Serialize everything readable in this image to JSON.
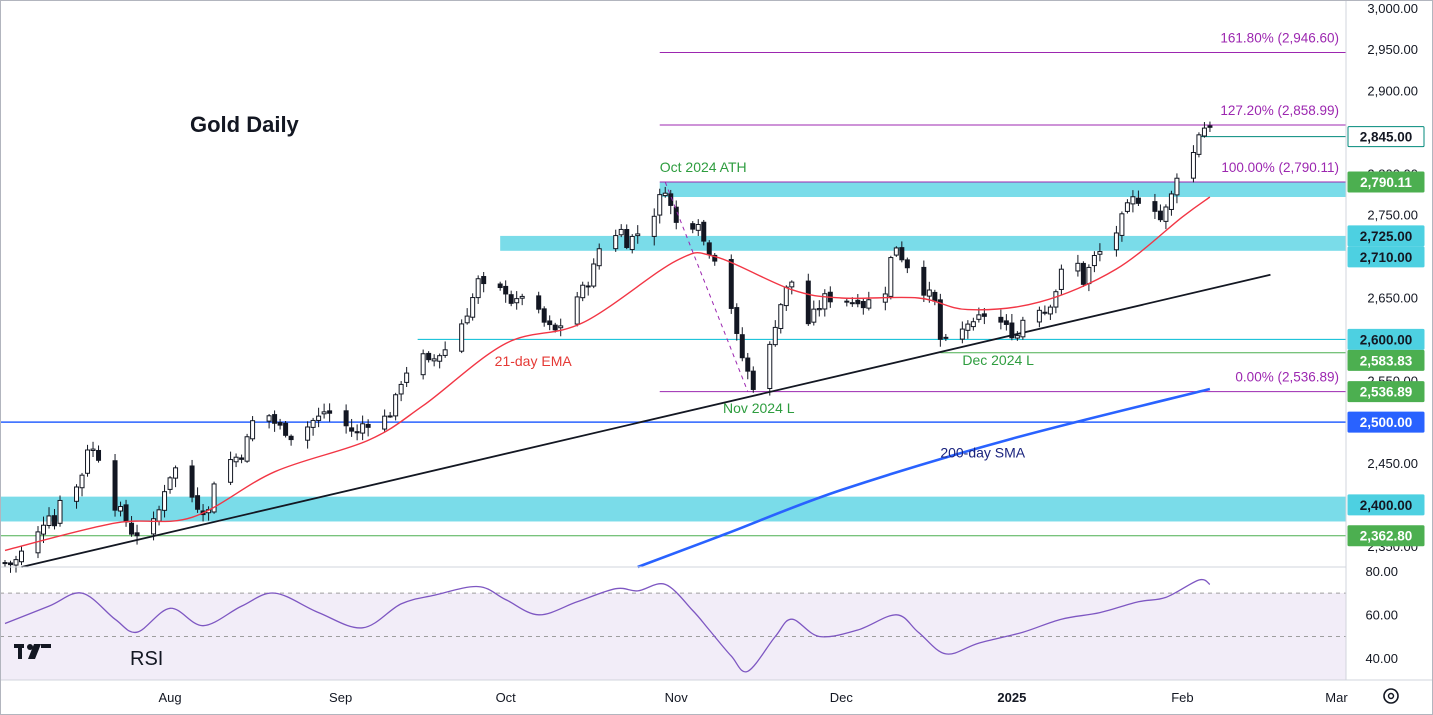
{
  "chart_data": {
    "type": "candlestick",
    "title": "Gold Daily",
    "y_axis": {
      "ticks": [
        "3,000.00",
        "2,950.00",
        "2,900.00",
        "2,850.00",
        "2,800.00",
        "2,750.00",
        "2,700.00",
        "2,650.00",
        "2,600.00",
        "2,550.00",
        "2,500.00",
        "2,450.00",
        "2,400.00",
        "2,350.00"
      ],
      "range": [
        2325,
        3010
      ]
    },
    "x_axis": {
      "ticks": [
        {
          "label": "Aug",
          "date": "2024-08-01",
          "bold": false
        },
        {
          "label": "Sep",
          "date": "2024-09-01",
          "bold": false
        },
        {
          "label": "Oct",
          "date": "2024-10-01",
          "bold": false
        },
        {
          "label": "Nov",
          "date": "2024-11-01",
          "bold": false
        },
        {
          "label": "Dec",
          "date": "2024-12-01",
          "bold": false
        },
        {
          "label": "2025",
          "date": "2025-01-01",
          "bold": true
        },
        {
          "label": "Feb",
          "date": "2025-02-01",
          "bold": false
        },
        {
          "label": "Mar",
          "date": "2025-03-01",
          "bold": false
        }
      ],
      "range": [
        "2024-07-02",
        "2025-03-10"
      ]
    },
    "price_anchors": [
      [
        "2024-07-02",
        2330,
        2328,
        2342,
        2352
      ],
      [
        "2024-07-08",
        2365,
        2380,
        2392,
        2376
      ],
      [
        "2024-07-12",
        2410,
        2440,
        2415,
        2430
      ],
      [
        "2024-07-17",
        2470,
        2465,
        2455,
        2448
      ],
      [
        "2024-07-22",
        2400,
        2395,
        2385,
        2378
      ],
      [
        "2024-07-25",
        2368,
        2365,
        2372,
        2380
      ],
      [
        "2024-07-31",
        2420,
        2440,
        2446,
        2438
      ],
      [
        "2024-08-05",
        2410,
        2400,
        2395,
        2392
      ],
      [
        "2024-08-09",
        2430,
        2450,
        2456,
        2462
      ],
      [
        "2024-08-16",
        2500,
        2505,
        2508,
        2495
      ],
      [
        "2024-08-22",
        2490,
        2480,
        2485,
        2500
      ],
      [
        "2024-08-28",
        2505,
        2515,
        2508,
        2495
      ],
      [
        "2024-09-02",
        2495,
        2490,
        2485,
        2498
      ],
      [
        "2024-09-06",
        2500,
        2490,
        2505,
        2515
      ],
      [
        "2024-09-12",
        2550,
        2565,
        2575,
        2580
      ],
      [
        "2024-09-17",
        2570,
        2580,
        2588,
        2610
      ],
      [
        "2024-09-23",
        2620,
        2630,
        2640,
        2655
      ],
      [
        "2024-09-26",
        2670,
        2660,
        2655,
        2658
      ],
      [
        "2024-10-01",
        2660,
        2650,
        2640,
        2645
      ],
      [
        "2024-10-04",
        2655,
        2640,
        2630,
        2615
      ],
      [
        "2024-10-10",
        2610,
        2620,
        2640,
        2650
      ],
      [
        "2024-10-15",
        2660,
        2665,
        2680,
        2690
      ],
      [
        "2024-10-18",
        2710,
        2720,
        2725,
        2735
      ],
      [
        "2024-10-23",
        2718,
        2725,
        2735,
        2745
      ],
      [
        "2024-10-29",
        2770,
        2780,
        2790,
        2745
      ],
      [
        "2024-11-01",
        2740,
        2735,
        2735,
        2740
      ],
      [
        "2024-11-05",
        2745,
        2725,
        2705,
        2710
      ],
      [
        "2024-11-08",
        2700,
        2690,
        2660,
        2650
      ],
      [
        "2024-11-11",
        2640,
        2605,
        2595,
        2570
      ],
      [
        "2024-11-14",
        2560,
        2545,
        2545,
        2565
      ],
      [
        "2024-11-18",
        2590,
        2615,
        2630,
        2650
      ],
      [
        "2024-11-21",
        2660,
        2670,
        2700,
        2705
      ],
      [
        "2024-11-25",
        2620,
        2630,
        2640,
        2650
      ],
      [
        "2024-11-29",
        2650,
        2640,
        2650,
        2645
      ],
      [
        "2024-12-04",
        2650,
        2640,
        2650,
        2645
      ],
      [
        "2024-12-09",
        2660,
        2690,
        2710,
        2715
      ],
      [
        "2024-12-12",
        2700,
        2690,
        2680,
        2670
      ],
      [
        "2024-12-16",
        2660,
        2655,
        2650,
        2640
      ],
      [
        "2024-12-19",
        2600,
        2595,
        2595,
        2605
      ],
      [
        "2024-12-23",
        2610,
        2620,
        2615,
        2625
      ],
      [
        "2024-12-27",
        2630,
        2620,
        2620,
        2610
      ],
      [
        "2025-01-02",
        2605,
        2625,
        2640,
        2650
      ],
      [
        "2025-01-06",
        2640,
        2635,
        2645,
        2660
      ],
      [
        "2025-01-10",
        2680,
        2680,
        2675,
        2690
      ],
      [
        "2025-01-14",
        2670,
        2680,
        2695,
        2700
      ],
      [
        "2025-01-17",
        2705,
        2700,
        2710,
        2730
      ],
      [
        "2025-01-21",
        2745,
        2755,
        2765,
        2770
      ],
      [
        "2025-01-24",
        2770,
        2765,
        2750,
        2760
      ],
      [
        "2025-01-28",
        2745,
        2755,
        2760,
        2780
      ],
      [
        "2025-01-31",
        2800,
        2795,
        2798,
        2820
      ],
      [
        "2025-02-03",
        2825,
        2845,
        2860,
        2855
      ],
      [
        "2025-02-06",
        2855,
        2860,
        2860,
        2860
      ]
    ],
    "series": [
      {
        "name": "21-day EMA",
        "color": "#f23645",
        "points": [
          [
            "2024-07-02",
            2345
          ],
          [
            "2024-07-22",
            2378
          ],
          [
            "2024-08-05",
            2385
          ],
          [
            "2024-08-20",
            2440
          ],
          [
            "2024-09-06",
            2478
          ],
          [
            "2024-09-16",
            2520
          ],
          [
            "2024-10-01",
            2595
          ],
          [
            "2024-10-15",
            2620
          ],
          [
            "2024-11-01",
            2695
          ],
          [
            "2024-11-08",
            2700
          ],
          [
            "2024-11-22",
            2660
          ],
          [
            "2024-12-01",
            2650
          ],
          [
            "2024-12-15",
            2650
          ],
          [
            "2024-12-24",
            2636
          ],
          [
            "2025-01-06",
            2645
          ],
          [
            "2025-01-20",
            2685
          ],
          [
            "2025-02-01",
            2748
          ],
          [
            "2025-02-06",
            2772
          ]
        ]
      },
      {
        "name": "200-day SMA",
        "color": "#2962ff",
        "points": [
          [
            "2024-10-25",
            2325
          ],
          [
            "2024-11-10",
            2365
          ],
          [
            "2024-12-01",
            2418
          ],
          [
            "2025-01-01",
            2480
          ],
          [
            "2025-02-06",
            2540
          ]
        ]
      }
    ],
    "trendline": {
      "color": "#131722",
      "points": [
        [
          "2024-07-05",
          2325
        ],
        [
          "2025-02-17",
          2678
        ]
      ]
    },
    "horizontal_lines": [
      {
        "value": 2500,
        "color": "#2962ff"
      },
      {
        "value": 2600,
        "start": "2024-09-15",
        "color": "#00bcd4"
      },
      {
        "value": 2845,
        "start": "2025-02-04",
        "color": "#00897b"
      },
      {
        "value": 2583.83,
        "start": "2024-12-19",
        "color": "#4caf50"
      },
      {
        "value": 2362.8,
        "color": "#4caf50"
      }
    ],
    "zones": [
      {
        "from": 2380,
        "to": 2410,
        "color": "#4dd0e1"
      },
      {
        "from": 2772,
        "to": 2790,
        "start": "2024-10-29",
        "color": "#4dd0e1"
      },
      {
        "from": 2707,
        "to": 2725,
        "start": "2024-09-30",
        "color": "#4dd0e1"
      }
    ],
    "fibonacci": {
      "start": "2024-10-29",
      "levels": [
        {
          "label": "161.80% (2,946.60)",
          "value": 2946.6
        },
        {
          "label": "127.20% (2,858.99)",
          "value": 2858.99
        },
        {
          "label": "100.00% (2,790.11)",
          "value": 2790.11
        },
        {
          "label": "0.00% (2,536.89)",
          "value": 2536.89
        }
      ]
    },
    "price_badges": [
      {
        "label": "2,845.00",
        "value": 2845,
        "bg": "#ffffff",
        "fg": "#131722",
        "border": "#00897b"
      },
      {
        "label": "2,790.11",
        "value": 2790.11,
        "bg": "#4caf50",
        "fg": "#ffffff"
      },
      {
        "label": "2,725.00",
        "value": 2725,
        "bg": "#4dd0e1",
        "fg": "#131722"
      },
      {
        "label": "2,710.00",
        "value": 2710,
        "bg": "#4dd0e1",
        "fg": "#131722"
      },
      {
        "label": "2,600.00",
        "value": 2600,
        "bg": "#4dd0e1",
        "fg": "#131722"
      },
      {
        "label": "2,583.83",
        "value": 2583.83,
        "bg": "#4caf50",
        "fg": "#ffffff"
      },
      {
        "label": "2,536.89",
        "value": 2536.89,
        "bg": "#4caf50",
        "fg": "#ffffff"
      },
      {
        "label": "2,500.00",
        "value": 2500,
        "bg": "#2962ff",
        "fg": "#ffffff"
      },
      {
        "label": "2,400.00",
        "value": 2400,
        "bg": "#4dd0e1",
        "fg": "#131722"
      },
      {
        "label": "2,362.80",
        "value": 2362.8,
        "bg": "#4caf50",
        "fg": "#ffffff"
      }
    ],
    "annotations": [
      {
        "text": "Oct 2024 ATH",
        "date": "2024-10-29",
        "value": 2802,
        "color": "#2e9d3f"
      },
      {
        "text": "21-day EMA",
        "date": "2024-10-06",
        "value": 2568,
        "color": "#e53935"
      },
      {
        "text": "Nov 2024 L",
        "date": "2024-11-16",
        "value": 2511,
        "color": "#2e9d3f"
      },
      {
        "text": "Dec 2024 L",
        "date": "2024-12-23",
        "value": 2569,
        "color": "#2e9d3f"
      },
      {
        "text": "200-day SMA",
        "date": "2024-12-19",
        "value": 2457,
        "color": "#1a237e"
      }
    ],
    "rsi": {
      "label": "RSI",
      "ticks": [
        "80.00",
        "60.00",
        "40.00"
      ],
      "range": [
        30,
        82
      ],
      "band": [
        30,
        70
      ],
      "points": [
        [
          "2024-07-02",
          56
        ],
        [
          "2024-07-10",
          64
        ],
        [
          "2024-07-16",
          70
        ],
        [
          "2024-07-22",
          58
        ],
        [
          "2024-07-26",
          52
        ],
        [
          "2024-08-01",
          63
        ],
        [
          "2024-08-07",
          55
        ],
        [
          "2024-08-14",
          64
        ],
        [
          "2024-08-20",
          70
        ],
        [
          "2024-08-28",
          61
        ],
        [
          "2024-09-05",
          54
        ],
        [
          "2024-09-12",
          65
        ],
        [
          "2024-09-18",
          69
        ],
        [
          "2024-09-26",
          73
        ],
        [
          "2024-10-01",
          67
        ],
        [
          "2024-10-07",
          60
        ],
        [
          "2024-10-14",
          66
        ],
        [
          "2024-10-21",
          72
        ],
        [
          "2024-10-25",
          71
        ],
        [
          "2024-10-30",
          74
        ],
        [
          "2024-11-04",
          62
        ],
        [
          "2024-11-07",
          53
        ],
        [
          "2024-11-11",
          41
        ],
        [
          "2024-11-14",
          34
        ],
        [
          "2024-11-19",
          50
        ],
        [
          "2024-11-22",
          58
        ],
        [
          "2024-11-27",
          50
        ],
        [
          "2024-12-04",
          53
        ],
        [
          "2024-12-11",
          60
        ],
        [
          "2024-12-15",
          52
        ],
        [
          "2024-12-20",
          42
        ],
        [
          "2024-12-26",
          47
        ],
        [
          "2025-01-03",
          52
        ],
        [
          "2025-01-10",
          58
        ],
        [
          "2025-01-17",
          61
        ],
        [
          "2025-01-24",
          66
        ],
        [
          "2025-01-29",
          68
        ],
        [
          "2025-02-04",
          76
        ],
        [
          "2025-02-06",
          74
        ]
      ]
    }
  }
}
